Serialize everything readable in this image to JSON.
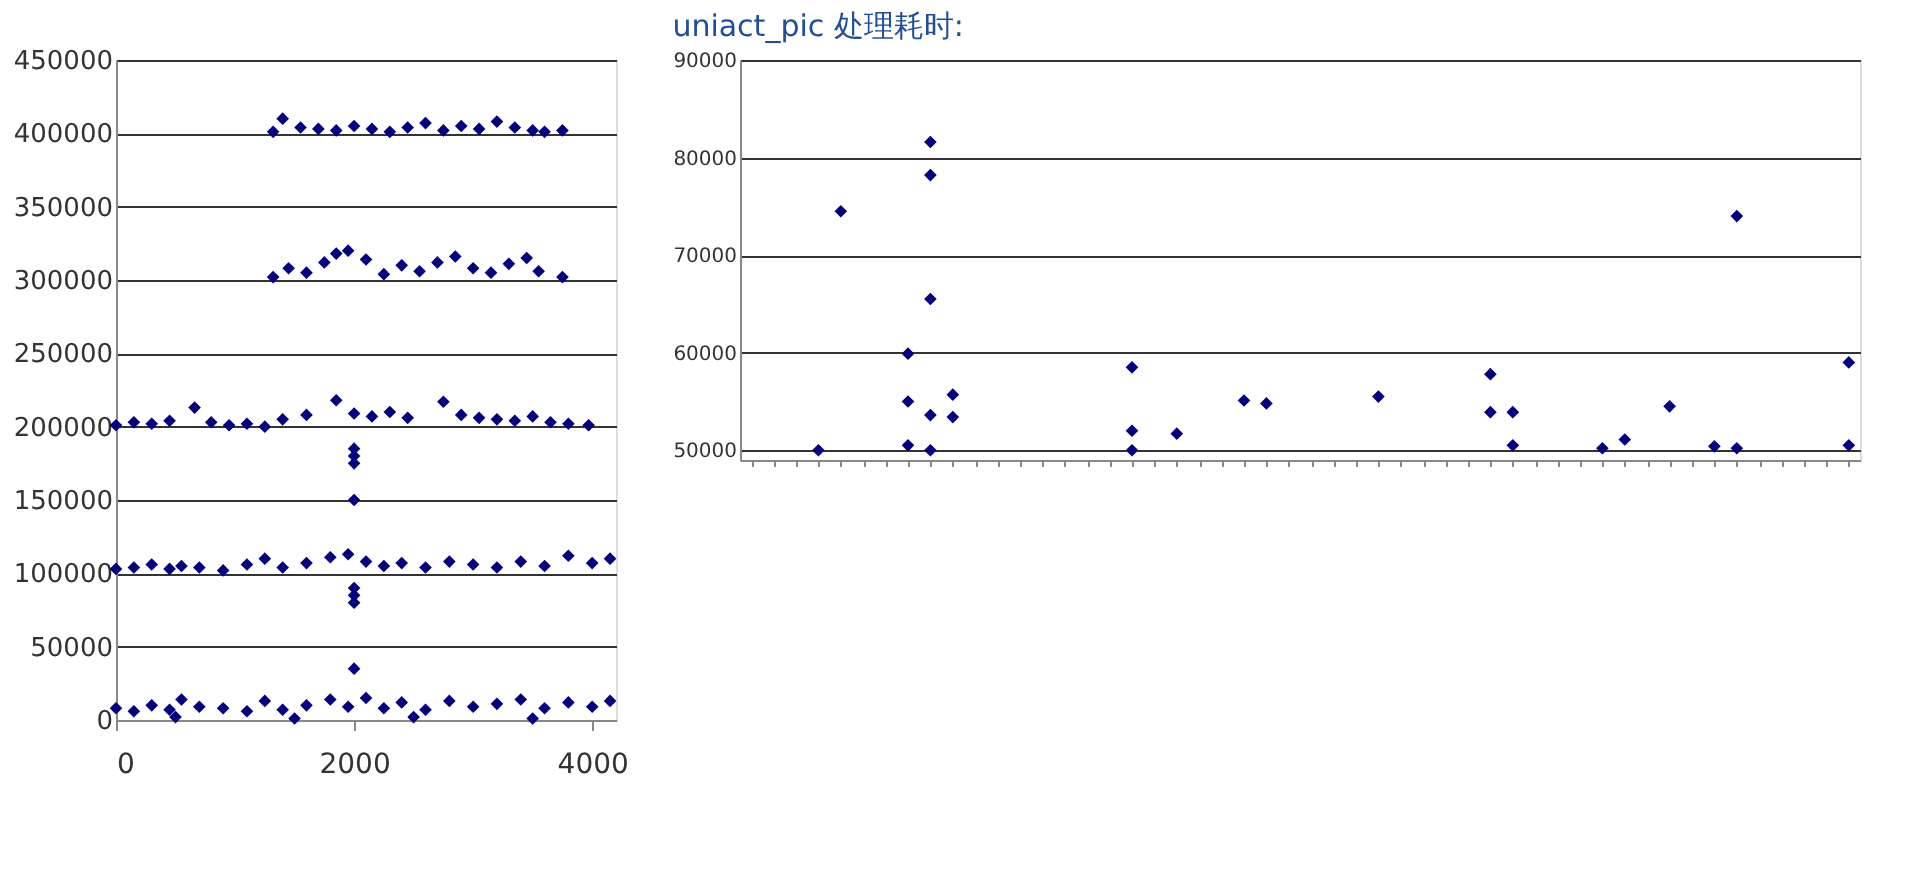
{
  "chart_data": [
    {
      "type": "scatter",
      "marker": "diamond",
      "grid": "y",
      "legend": false,
      "xlim": [
        0,
        4200
      ],
      "xticks": [
        0,
        2000,
        4000
      ],
      "ylim": [
        0,
        450000
      ],
      "yticks": [
        0,
        50000,
        100000,
        150000,
        200000,
        250000,
        300000,
        350000,
        400000,
        450000
      ],
      "series": [
        {
          "color": "#000080",
          "x": [
            0,
            150,
            300,
            450,
            550,
            700,
            900,
            1100,
            1250,
            1400,
            1600,
            1800,
            1950,
            2100,
            2250,
            2400,
            2600,
            2800,
            3000,
            3200,
            3400,
            3600,
            3800,
            4000,
            4150,
            500,
            1500,
            2500,
            3500,
            2000
          ],
          "values": [
            8000,
            6000,
            10000,
            7000,
            14000,
            9000,
            8000,
            6000,
            13000,
            7000,
            10000,
            14000,
            9000,
            15000,
            8000,
            12000,
            7000,
            13000,
            9000,
            11000,
            14000,
            8000,
            12000,
            9000,
            13000,
            2000,
            1000,
            2000,
            1000,
            35000
          ]
        },
        {
          "color": "#000080",
          "x": [
            0,
            150,
            300,
            450,
            550,
            700,
            900,
            1100,
            1250,
            1400,
            1600,
            1800,
            1950,
            2100,
            2250,
            2400,
            2600,
            2800,
            3000,
            3200,
            3400,
            3600,
            3800,
            4000,
            4150,
            2000,
            2000,
            2000
          ],
          "values": [
            103000,
            104000,
            106000,
            103000,
            105000,
            104000,
            102000,
            106000,
            110000,
            104000,
            107000,
            111000,
            113000,
            108000,
            105000,
            107000,
            104000,
            108000,
            106000,
            104000,
            108000,
            105000,
            112000,
            107000,
            110000,
            90000,
            85000,
            80000
          ]
        },
        {
          "color": "#000080",
          "x": [
            0,
            150,
            300,
            450,
            660,
            800,
            950,
            1100,
            1250,
            1400,
            1600,
            1850,
            2000,
            2150,
            2300,
            2450,
            2750,
            2900,
            3050,
            3200,
            3350,
            3500,
            3650,
            3800,
            3970,
            2000,
            2000,
            2000,
            2000
          ],
          "values": [
            201000,
            203000,
            202000,
            204000,
            213000,
            203000,
            201000,
            202000,
            200000,
            205000,
            208000,
            218000,
            209000,
            207000,
            210000,
            206000,
            217000,
            208000,
            206000,
            205000,
            204000,
            207000,
            203000,
            202000,
            201000,
            185000,
            180000,
            175000,
            150000
          ]
        },
        {
          "color": "#000080",
          "x": [
            1320,
            1450,
            1600,
            1750,
            1850,
            1950,
            2100,
            2250,
            2400,
            2550,
            2700,
            2850,
            3000,
            3150,
            3300,
            3450,
            3550,
            3750
          ],
          "values": [
            302000,
            308000,
            305000,
            312000,
            318000,
            320000,
            314000,
            304000,
            310000,
            306000,
            312000,
            316000,
            308000,
            305000,
            311000,
            315000,
            306000,
            302000
          ]
        },
        {
          "color": "#000080",
          "x": [
            1320,
            1400,
            1550,
            1700,
            1850,
            2000,
            2150,
            2300,
            2450,
            2600,
            2750,
            2900,
            3050,
            3200,
            3350,
            3500,
            3600,
            3750
          ],
          "values": [
            401000,
            410000,
            404000,
            403000,
            402000,
            405000,
            403000,
            401000,
            404000,
            407000,
            402000,
            405000,
            403000,
            408000,
            404000,
            402000,
            401000,
            402000
          ]
        }
      ]
    },
    {
      "type": "scatter",
      "marker": "diamond",
      "grid": "y",
      "legend": false,
      "title": "uniact_pic 处理耗时:",
      "tick_labels": "y",
      "categories": [
        null,
        null,
        null,
        null,
        null,
        null,
        null,
        null,
        null,
        null,
        null,
        null,
        null,
        null,
        null,
        null,
        null,
        null,
        null,
        null,
        null,
        null,
        null,
        null,
        null,
        null,
        null,
        null,
        null,
        null,
        null,
        null,
        null,
        null,
        null,
        null,
        null,
        null,
        null,
        null,
        null,
        null,
        null,
        null,
        null,
        null,
        null,
        null,
        null,
        null
      ],
      "ylim": [
        49000,
        90000
      ],
      "yticks": [
        50000,
        60000,
        70000,
        80000,
        90000
      ],
      "series": [
        {
          "color": "#000080",
          "values": [
            null,
            null,
            null,
            50000,
            74500,
            null,
            null,
            59900,
            81600,
            55700,
            null,
            null,
            null,
            null,
            null,
            null,
            null,
            58500,
            null,
            51700,
            null,
            null,
            55100,
            54800,
            null,
            null,
            null,
            null,
            55500,
            null,
            null,
            null,
            null,
            57800,
            53900,
            null,
            null,
            null,
            50200,
            51100,
            null,
            54500,
            null,
            50400,
            74000,
            null,
            null,
            null,
            null,
            59000
          ]
        },
        {
          "color": "#000080",
          "values": [
            null,
            null,
            null,
            null,
            null,
            null,
            null,
            55000,
            78200,
            53400,
            null,
            null,
            null,
            null,
            null,
            null,
            null,
            52000,
            null,
            null,
            null,
            null,
            null,
            null,
            null,
            null,
            null,
            null,
            null,
            null,
            null,
            null,
            null,
            53900,
            50500,
            null,
            null,
            null,
            null,
            null,
            null,
            null,
            null,
            null,
            50200,
            null,
            null,
            null,
            null,
            50500
          ]
        },
        {
          "color": "#000080",
          "values": [
            null,
            null,
            null,
            null,
            null,
            null,
            null,
            50500,
            65500,
            null,
            null,
            null,
            null,
            null,
            null,
            null,
            null,
            50000,
            null,
            null,
            null,
            null,
            null,
            null,
            null,
            null,
            null,
            null,
            null,
            null,
            null,
            null,
            null,
            null,
            null,
            null,
            null,
            null,
            null,
            null,
            null,
            null,
            null,
            null,
            null,
            null,
            null,
            null,
            null,
            null
          ]
        },
        {
          "color": "#000080",
          "values": [
            null,
            null,
            null,
            null,
            null,
            null,
            null,
            null,
            53600,
            null,
            null,
            null,
            null,
            null,
            null,
            null,
            null,
            null,
            null,
            null,
            null,
            null,
            null,
            null,
            null,
            null,
            null,
            null,
            null,
            null,
            null,
            null,
            null,
            null,
            null,
            null,
            null,
            null,
            null,
            null,
            null,
            null,
            null,
            null,
            null,
            null,
            null,
            null,
            null,
            null
          ]
        },
        {
          "color": "#000080",
          "values": [
            null,
            null,
            null,
            null,
            null,
            null,
            null,
            null,
            50000,
            null,
            null,
            null,
            null,
            null,
            null,
            null,
            null,
            null,
            null,
            null,
            null,
            null,
            null,
            null,
            null,
            null,
            null,
            null,
            null,
            null,
            null,
            null,
            null,
            null,
            null,
            null,
            null,
            null,
            null,
            null,
            null,
            null,
            null,
            null,
            null,
            null,
            null,
            null,
            null,
            null
          ]
        }
      ]
    }
  ]
}
